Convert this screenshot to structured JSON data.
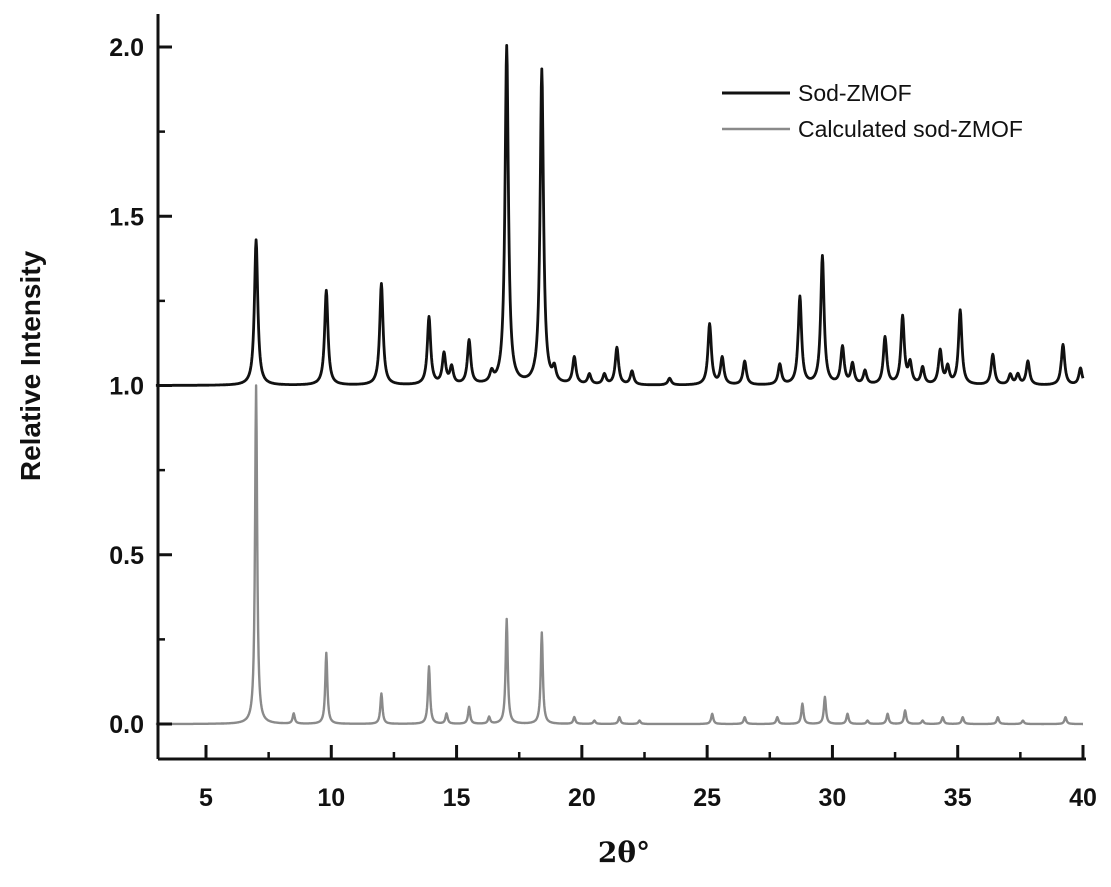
{
  "chart_data": {
    "type": "line",
    "title": "",
    "xlabel": "2θ°",
    "ylabel": "Relative Intensity",
    "xlim": [
      3,
      40
    ],
    "ylim": [
      -0.1,
      2.1
    ],
    "x_ticks": [
      5,
      10,
      15,
      20,
      25,
      30,
      35,
      40
    ],
    "y_ticks": [
      0.0,
      0.5,
      1.0,
      1.5,
      2.0
    ],
    "x_tick_labels": [
      "5",
      "10",
      "15",
      "20",
      "25",
      "30",
      "35",
      "40"
    ],
    "y_tick_labels": [
      "0.0",
      "0.5",
      "1.0",
      "1.5",
      "2.0"
    ],
    "grid": false,
    "legend_position": "top-right",
    "series": [
      {
        "name": "Sod-ZMOF",
        "color": "#111111",
        "baseline": 1.0,
        "peaks": [
          {
            "x": 7.0,
            "y": 1.43
          },
          {
            "x": 9.8,
            "y": 1.28
          },
          {
            "x": 12.0,
            "y": 1.3
          },
          {
            "x": 13.9,
            "y": 1.2
          },
          {
            "x": 14.5,
            "y": 1.09
          },
          {
            "x": 14.8,
            "y": 1.05
          },
          {
            "x": 15.5,
            "y": 1.13
          },
          {
            "x": 16.4,
            "y": 1.03
          },
          {
            "x": 17.0,
            "y": 2.0
          },
          {
            "x": 18.4,
            "y": 1.93
          },
          {
            "x": 18.9,
            "y": 1.04
          },
          {
            "x": 19.7,
            "y": 1.08
          },
          {
            "x": 20.3,
            "y": 1.03
          },
          {
            "x": 20.9,
            "y": 1.03
          },
          {
            "x": 21.4,
            "y": 1.11
          },
          {
            "x": 22.0,
            "y": 1.04
          },
          {
            "x": 23.5,
            "y": 1.02
          },
          {
            "x": 25.1,
            "y": 1.18
          },
          {
            "x": 25.6,
            "y": 1.08
          },
          {
            "x": 26.5,
            "y": 1.07
          },
          {
            "x": 27.9,
            "y": 1.06
          },
          {
            "x": 28.7,
            "y": 1.26
          },
          {
            "x": 29.6,
            "y": 1.38
          },
          {
            "x": 30.4,
            "y": 1.11
          },
          {
            "x": 30.8,
            "y": 1.06
          },
          {
            "x": 31.3,
            "y": 1.04
          },
          {
            "x": 32.1,
            "y": 1.14
          },
          {
            "x": 32.8,
            "y": 1.2
          },
          {
            "x": 33.1,
            "y": 1.06
          },
          {
            "x": 33.6,
            "y": 1.05
          },
          {
            "x": 34.3,
            "y": 1.1
          },
          {
            "x": 34.6,
            "y": 1.05
          },
          {
            "x": 35.1,
            "y": 1.22
          },
          {
            "x": 36.4,
            "y": 1.09
          },
          {
            "x": 37.1,
            "y": 1.03
          },
          {
            "x": 37.4,
            "y": 1.03
          },
          {
            "x": 37.8,
            "y": 1.07
          },
          {
            "x": 39.2,
            "y": 1.12
          },
          {
            "x": 39.9,
            "y": 1.05
          }
        ]
      },
      {
        "name": "Calculated sod-ZMOF",
        "color": "#8a8a8a",
        "baseline": 0.0,
        "peaks": [
          {
            "x": 7.0,
            "y": 1.0
          },
          {
            "x": 8.5,
            "y": 0.03
          },
          {
            "x": 9.8,
            "y": 0.21
          },
          {
            "x": 12.0,
            "y": 0.09
          },
          {
            "x": 13.9,
            "y": 0.17
          },
          {
            "x": 14.6,
            "y": 0.03
          },
          {
            "x": 15.5,
            "y": 0.05
          },
          {
            "x": 16.3,
            "y": 0.02
          },
          {
            "x": 17.0,
            "y": 0.31
          },
          {
            "x": 18.4,
            "y": 0.27
          },
          {
            "x": 19.7,
            "y": 0.02
          },
          {
            "x": 20.5,
            "y": 0.01
          },
          {
            "x": 21.5,
            "y": 0.02
          },
          {
            "x": 22.3,
            "y": 0.01
          },
          {
            "x": 25.2,
            "y": 0.03
          },
          {
            "x": 26.5,
            "y": 0.02
          },
          {
            "x": 27.8,
            "y": 0.02
          },
          {
            "x": 28.8,
            "y": 0.06
          },
          {
            "x": 29.7,
            "y": 0.08
          },
          {
            "x": 30.6,
            "y": 0.03
          },
          {
            "x": 31.4,
            "y": 0.01
          },
          {
            "x": 32.2,
            "y": 0.03
          },
          {
            "x": 32.9,
            "y": 0.04
          },
          {
            "x": 33.6,
            "y": 0.01
          },
          {
            "x": 34.4,
            "y": 0.02
          },
          {
            "x": 35.2,
            "y": 0.02
          },
          {
            "x": 36.6,
            "y": 0.02
          },
          {
            "x": 37.6,
            "y": 0.01
          },
          {
            "x": 39.3,
            "y": 0.02
          }
        ]
      }
    ]
  }
}
